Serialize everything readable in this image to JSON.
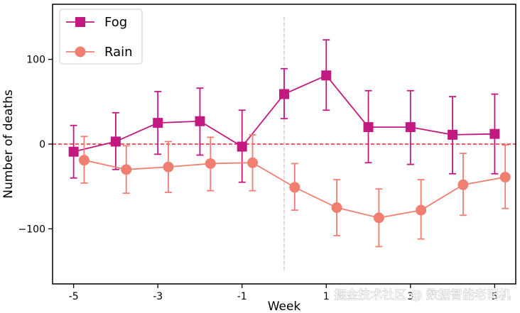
{
  "chart_data": {
    "type": "line",
    "title": "",
    "xlabel": "Week",
    "ylabel": "Number of deaths",
    "xlim": [
      -5.5,
      5.5
    ],
    "ylim": [
      -165,
      165
    ],
    "x_ticks": [
      -5,
      -3,
      -1,
      1,
      3,
      5
    ],
    "x_tick_labels": [
      "-5",
      "-3",
      "-1",
      "1",
      "3",
      "5"
    ],
    "y_ticks": [
      -100,
      0,
      100
    ],
    "y_tick_labels": [
      "−100",
      "0",
      "100"
    ],
    "reference_lines": {
      "horizontal": {
        "y": 0,
        "color": "#e8202a",
        "style": "dashed"
      },
      "vertical": {
        "x": 0,
        "color": "#c8c8c8",
        "style": "dashed",
        "ymin": -150,
        "ymax": 150
      }
    },
    "legend_position": "top-left",
    "grid": false,
    "series": [
      {
        "name": "Fog",
        "color": "#c1197f",
        "marker": "square",
        "x": [
          -5,
          -4,
          -3,
          -2,
          -1,
          0,
          1,
          2,
          3,
          4,
          5
        ],
        "y": [
          -9,
          3,
          25,
          27,
          -3,
          59,
          81,
          20,
          20,
          11,
          12
        ],
        "err_low": [
          -40,
          -30,
          -12,
          -13,
          -45,
          30,
          40,
          -22,
          -24,
          -35,
          -35
        ],
        "err_high": [
          22,
          37,
          62,
          66,
          40,
          89,
          123,
          63,
          63,
          56,
          59
        ]
      },
      {
        "name": "Rain",
        "color": "#f07f72",
        "marker": "circle",
        "x": [
          -4.75,
          -3.75,
          -2.75,
          -1.75,
          -0.75,
          0.25,
          1.25,
          2.25,
          3.25,
          4.25,
          5.25
        ],
        "y": [
          -19,
          -30,
          -27,
          -23,
          -22,
          -51,
          -75,
          -87,
          -78,
          -48,
          -39
        ],
        "err_low": [
          -46,
          -58,
          -57,
          -55,
          -55,
          -78,
          -108,
          -121,
          -112,
          -84,
          -76
        ],
        "err_high": [
          9,
          -2,
          3,
          8,
          11,
          -23,
          -42,
          -53,
          -42,
          -11,
          -1
        ]
      }
    ]
  },
  "watermark": "掘金技术社区 @ 数据智能老司机"
}
